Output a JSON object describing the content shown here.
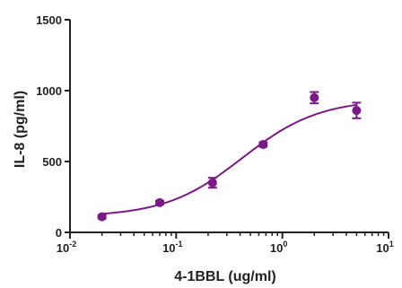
{
  "chart_data": {
    "type": "scatter",
    "title": "",
    "xlabel": "4-1BBL (ug/ml)",
    "ylabel": "IL-8 (pg/ml)",
    "x_scale": "log",
    "xlim": [
      0.01,
      10
    ],
    "ylim": [
      0,
      1500
    ],
    "x_ticks": [
      {
        "base": "10",
        "exp": "-2"
      },
      {
        "base": "10",
        "exp": "-1"
      },
      {
        "base": "10",
        "exp": "0"
      },
      {
        "base": "10",
        "exp": "1"
      }
    ],
    "y_ticks": [
      "0",
      "500",
      "1000",
      "1500"
    ],
    "grid": false,
    "marker_color": "#7a1a86",
    "curve_color": "#7a1a86",
    "series": [
      {
        "x": [
          0.02,
          0.07,
          0.22,
          0.66,
          2,
          5
        ],
        "y": [
          110,
          210,
          350,
          620,
          950,
          860
        ],
        "err": [
          12,
          12,
          35,
          15,
          40,
          55
        ]
      }
    ],
    "fit": {
      "type": "four-parameter logistic",
      "bottom": 110,
      "top": 940,
      "ec50": 0.42,
      "hill": 1.2
    }
  }
}
